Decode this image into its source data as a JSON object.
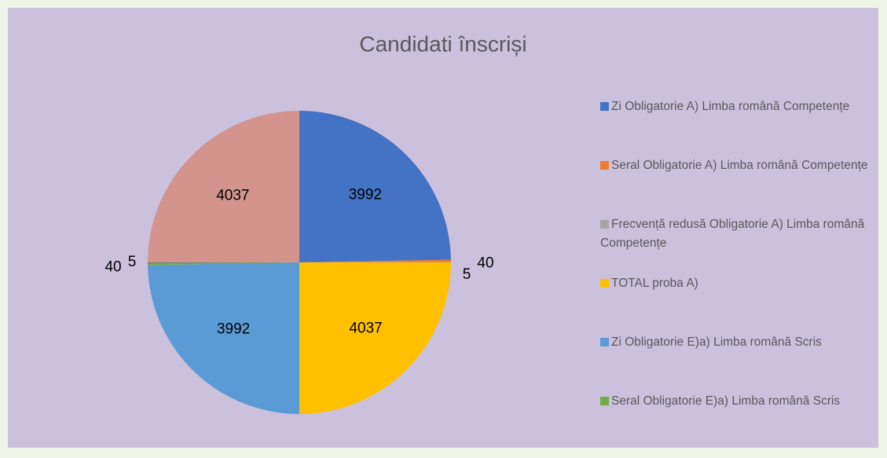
{
  "chart_data": {
    "type": "pie",
    "title": "Candidati înscriși",
    "categories": [
      "Zi Obligatorie A) Limba română Competențe",
      "Seral Obligatorie A) Limba română Competențe",
      "Frecvență redusă Obligatorie A) Limba română Competențe",
      "TOTAL proba A)",
      "Zi Obligatorie E)a) Limba română Scris",
      "Seral Obligatorie E)a) Limba română Scris",
      null,
      null
    ],
    "values": [
      3992,
      40,
      5,
      4037,
      3992,
      40,
      5,
      4037
    ],
    "colors": [
      "#4472c4",
      "#ed7d31",
      "#a5a5a5",
      "#ffc000",
      "#5b9bd5",
      "#70ad47",
      "#264478",
      "#d3948e"
    ],
    "legend": "right"
  }
}
